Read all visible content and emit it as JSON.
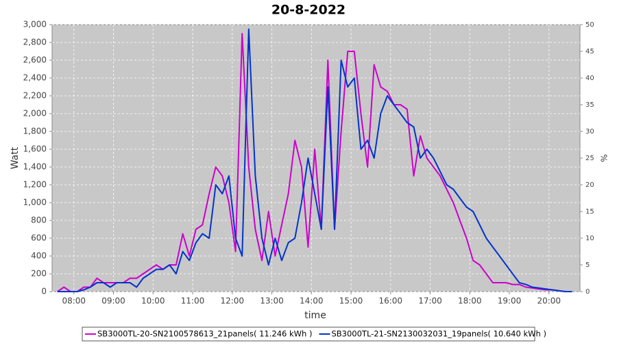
{
  "chart_data": {
    "type": "line",
    "title": "20-8-2022",
    "x_label": "time",
    "y_label": "Watt",
    "y2_label": "%",
    "x": [
      "07:35",
      "07:45",
      "07:55",
      "08:05",
      "08:15",
      "08:25",
      "08:35",
      "08:45",
      "08:55",
      "09:05",
      "09:15",
      "09:25",
      "09:35",
      "09:45",
      "09:55",
      "10:05",
      "10:15",
      "10:25",
      "10:35",
      "10:45",
      "10:55",
      "11:05",
      "11:15",
      "11:25",
      "11:35",
      "11:45",
      "11:55",
      "12:05",
      "12:15",
      "12:25",
      "12:35",
      "12:45",
      "12:55",
      "13:05",
      "13:15",
      "13:25",
      "13:35",
      "13:45",
      "13:55",
      "14:05",
      "14:15",
      "14:25",
      "14:35",
      "14:45",
      "14:55",
      "15:05",
      "15:15",
      "15:25",
      "15:35",
      "15:45",
      "15:55",
      "16:05",
      "16:15",
      "16:25",
      "16:35",
      "16:45",
      "16:55",
      "17:05",
      "17:15",
      "17:25",
      "17:35",
      "17:45",
      "17:55",
      "18:05",
      "18:15",
      "18:25",
      "18:35",
      "18:45",
      "18:55",
      "19:05",
      "19:15",
      "19:25",
      "19:35",
      "19:45",
      "19:55",
      "20:05",
      "20:15",
      "20:25",
      "20:35"
    ],
    "xlim": [
      "07:27",
      "20:47"
    ],
    "xticks": [
      "08:00",
      "09:00",
      "10:00",
      "11:00",
      "12:00",
      "13:00",
      "14:00",
      "15:00",
      "16:00",
      "17:00",
      "18:00",
      "19:00",
      "20:00"
    ],
    "ylim": [
      0,
      3000
    ],
    "yticks": [
      0,
      200,
      400,
      600,
      800,
      {
        "value": 1000,
        "label": "1,000"
      },
      {
        "value": 1200,
        "label": "1,200"
      },
      {
        "value": 1400,
        "label": "1,400"
      },
      {
        "value": 1600,
        "label": "1,600"
      },
      {
        "value": 1800,
        "label": "1,800"
      },
      {
        "value": 2000,
        "label": "2,000"
      },
      {
        "value": 2200,
        "label": "2,200"
      },
      {
        "value": 2400,
        "label": "2,400"
      },
      {
        "value": 2600,
        "label": "2,600"
      },
      {
        "value": 2800,
        "label": "2,800"
      },
      {
        "value": 3000,
        "label": "3,000"
      }
    ],
    "y2lim": [
      0,
      50
    ],
    "y2ticks": [
      0,
      5,
      10,
      15,
      20,
      25,
      30,
      35,
      40,
      45,
      50
    ],
    "grid": true,
    "legend": "bottom",
    "series": [
      {
        "name": "SB3000TL-20-SN2100578613_21panels( 11.246 kWh )",
        "color": "#cc00cc",
        "values": [
          0,
          50,
          0,
          0,
          50,
          50,
          150,
          100,
          100,
          100,
          100,
          150,
          150,
          200,
          250,
          300,
          250,
          300,
          300,
          650,
          400,
          700,
          750,
          1100,
          1400,
          1300,
          1000,
          450,
          2900,
          1400,
          700,
          350,
          900,
          400,
          750,
          1100,
          1700,
          1400,
          500,
          1600,
          700,
          2600,
          700,
          1800,
          2700,
          2700,
          2000,
          1400,
          2550,
          2300,
          2250,
          2100,
          2100,
          2050,
          1300,
          1750,
          1500,
          1400,
          1300,
          1150,
          1000,
          800,
          600,
          350,
          300,
          200,
          100,
          100,
          100,
          80,
          80,
          50,
          40,
          30,
          20,
          20,
          10,
          0,
          0
        ]
      },
      {
        "name": "SB3000TL-21-SN2130032031_19panels( 10.640 kWh )",
        "color": "#0033cc",
        "values": [
          0,
          0,
          0,
          0,
          20,
          50,
          100,
          100,
          50,
          100,
          100,
          100,
          50,
          150,
          200,
          250,
          250,
          300,
          200,
          450,
          350,
          550,
          650,
          600,
          1200,
          1100,
          1300,
          600,
          400,
          2950,
          1300,
          600,
          300,
          600,
          350,
          550,
          600,
          1000,
          1500,
          1100,
          700,
          2300,
          700,
          2600,
          2300,
          2400,
          1600,
          1700,
          1500,
          2000,
          2200,
          2100,
          2000,
          1900,
          1850,
          1500,
          1600,
          1500,
          1350,
          1200,
          1150,
          1050,
          950,
          900,
          750,
          600,
          500,
          400,
          300,
          200,
          100,
          80,
          50,
          40,
          30,
          20,
          10,
          0,
          0
        ]
      }
    ]
  }
}
